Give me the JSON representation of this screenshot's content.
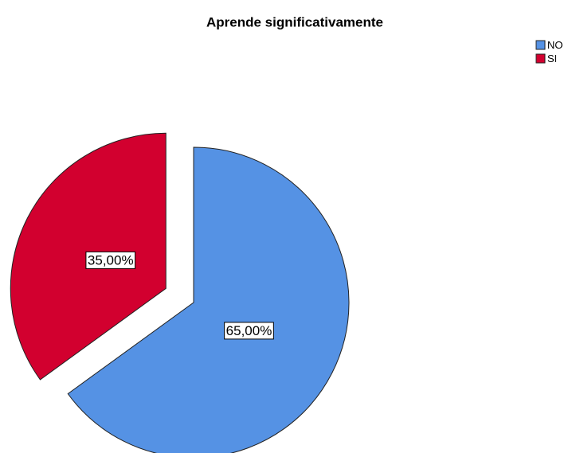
{
  "chart_data": {
    "type": "pie",
    "title": "Aprende significativamente",
    "categories": [
      "NO",
      "SI"
    ],
    "values": [
      65,
      35
    ],
    "value_labels": [
      "65,00%",
      "35,00%"
    ],
    "colors": [
      "#5592e4",
      "#d2002f"
    ],
    "explode": [
      false,
      true
    ],
    "legend": "top-right"
  }
}
